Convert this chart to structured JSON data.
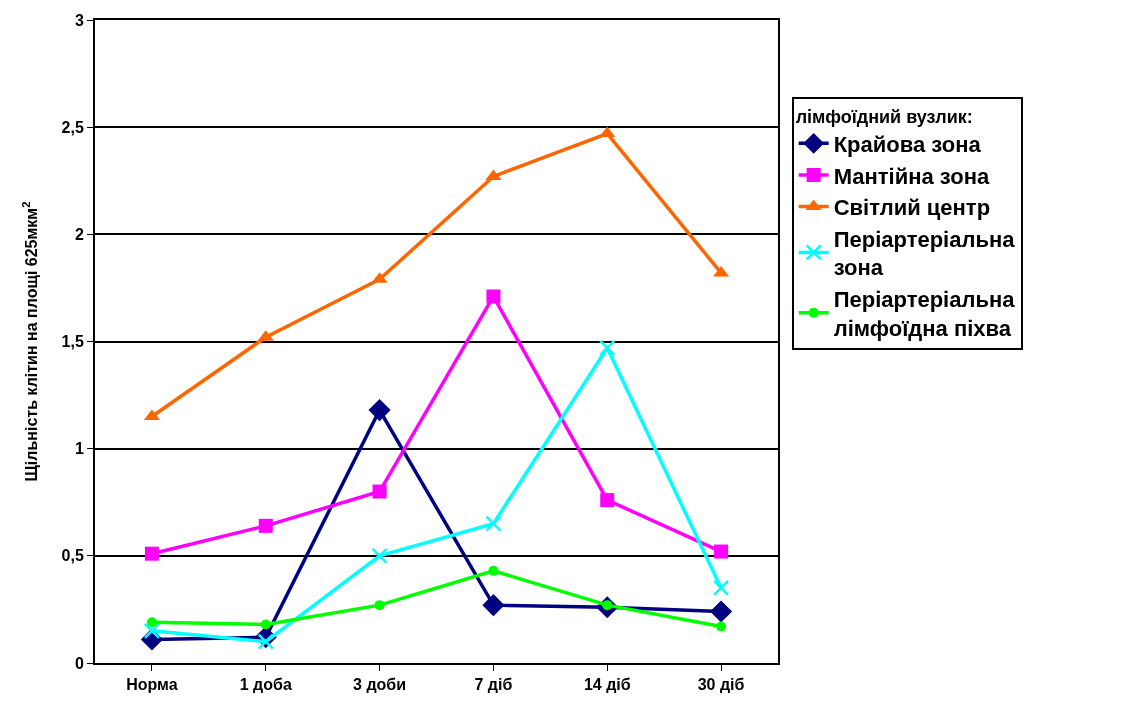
{
  "chart_data": {
    "type": "line",
    "ylabel": "Щільність клітин на площі 625мкм$^{2}$",
    "legend_title": "лімфоїдний вузлик:",
    "categories": [
      "Норма",
      "1 доба",
      "3 доби",
      "7 діб",
      "14 діб",
      "30 діб"
    ],
    "ylim": [
      0,
      3
    ],
    "yticks": [
      0,
      {
        "value": 0.5,
        "label": "0,5"
      },
      1,
      {
        "value": 1.5,
        "label": "1,5"
      },
      2,
      {
        "value": 2.5,
        "label": "2,5"
      },
      3
    ],
    "grid": "y",
    "legend": "right",
    "line_style": "solid",
    "series": [
      {
        "name": "Крайова зона",
        "color": "#000080",
        "marker": "diamond",
        "values": [
          0.11,
          0.12,
          1.18,
          0.27,
          0.26,
          0.24
        ]
      },
      {
        "name": "Мантійна зона",
        "color": "#ff00ff",
        "marker": "square",
        "values": [
          0.51,
          0.64,
          0.8,
          1.71,
          0.76,
          0.52
        ]
      },
      {
        "name": "Світлий центр",
        "color": "#ff6600",
        "marker": "triangle",
        "values": [
          1.15,
          1.52,
          1.79,
          2.27,
          2.47,
          1.82
        ]
      },
      {
        "name": "Періартеріальна зона",
        "color": "#00ffff",
        "marker": "cross",
        "values": [
          0.15,
          0.1,
          0.5,
          0.65,
          1.47,
          0.35
        ]
      },
      {
        "name": "Періартеріальна лімфоїдна піхва",
        "color": "#00ff00",
        "marker": "circle",
        "values": [
          0.19,
          0.18,
          0.27,
          0.43,
          0.27,
          0.17
        ]
      }
    ]
  }
}
